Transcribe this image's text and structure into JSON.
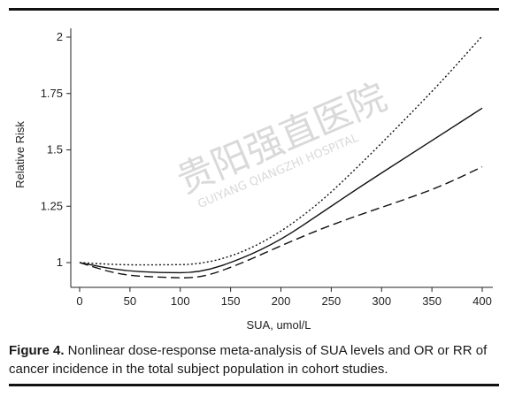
{
  "chart_data": {
    "type": "line",
    "xlabel": "SUA, umol/L",
    "ylabel": "Relative Risk",
    "xlim": [
      0,
      400
    ],
    "ylim": [
      0.95,
      2.05
    ],
    "x_ticks": [
      "0",
      "50",
      "100",
      "150",
      "200",
      "250",
      "300",
      "350",
      "400"
    ],
    "y_ticks": [
      "1",
      "1.25",
      "1.5",
      "1.75",
      "2"
    ],
    "grid": false,
    "series": [
      {
        "style": "solid",
        "x": [
          0,
          40,
          80,
          120,
          160,
          200,
          240,
          280,
          320,
          360,
          400
        ],
        "y": [
          1.0,
          0.965,
          0.955,
          0.955,
          1.015,
          1.1,
          1.22,
          1.34,
          1.455,
          1.57,
          1.685
        ]
      },
      {
        "style": "dotted",
        "x": [
          0,
          40,
          80,
          120,
          160,
          200,
          240,
          280,
          320,
          360,
          400
        ],
        "y": [
          1.0,
          0.99,
          0.99,
          0.992,
          1.04,
          1.135,
          1.27,
          1.44,
          1.62,
          1.805,
          2.005
        ]
      },
      {
        "style": "dashed",
        "x": [
          0,
          40,
          80,
          120,
          160,
          200,
          240,
          280,
          320,
          360,
          400
        ],
        "y": [
          1.0,
          0.945,
          0.935,
          0.93,
          0.995,
          1.075,
          1.15,
          1.215,
          1.275,
          1.34,
          1.425
        ]
      }
    ]
  },
  "caption": {
    "figure_label": "Figure 4.",
    "text": " Nonlinear dose-response meta-analysis of SUA levels and OR or RR of cancer incidence in the total subject population in cohort studies."
  },
  "watermark": {
    "chinese": "贵阳强直医院",
    "english": "GUIYANG QIANGZHI HOSPITAL"
  }
}
